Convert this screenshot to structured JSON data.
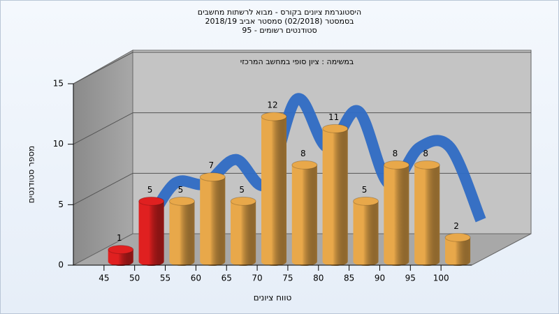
{
  "chart_data": {
    "type": "histogram",
    "title": "היסטוגרמת ציונים בקורס - מבוא לרשתות מחשבים",
    "subtitle_lines": [
      "בסמסטר  (02/2018)  סמסטר אביב 2018/19",
      "סטודנטים רשומים - 95"
    ],
    "annotation": "במשימה : ציון סופי במחשב המרכזי",
    "x_label": "טווח ציונים",
    "y_label": "מספר סטודנטים",
    "bins": [
      45,
      50,
      55,
      60,
      65,
      70,
      75,
      80,
      85,
      90,
      95,
      100,
      105
    ],
    "values": [
      1,
      5,
      5,
      7,
      5,
      12,
      8,
      11,
      5,
      8,
      8,
      2
    ],
    "colors": [
      "#e02020",
      "#e02020",
      "#e8a84a",
      "#e8a84a",
      "#e8a84a",
      "#e8a84a",
      "#e8a84a",
      "#e8a84a",
      "#e8a84a",
      "#e8a84a",
      "#e8a84a",
      "#e8a84a"
    ],
    "curve_color": "#2f6cc4",
    "xlim": [
      40,
      105
    ],
    "xticks": [
      45,
      50,
      55,
      60,
      65,
      70,
      75,
      80,
      85,
      90,
      95,
      100
    ],
    "ylim": [
      0,
      15
    ],
    "yticks": [
      0,
      5,
      10,
      15
    ],
    "grid": true
  }
}
